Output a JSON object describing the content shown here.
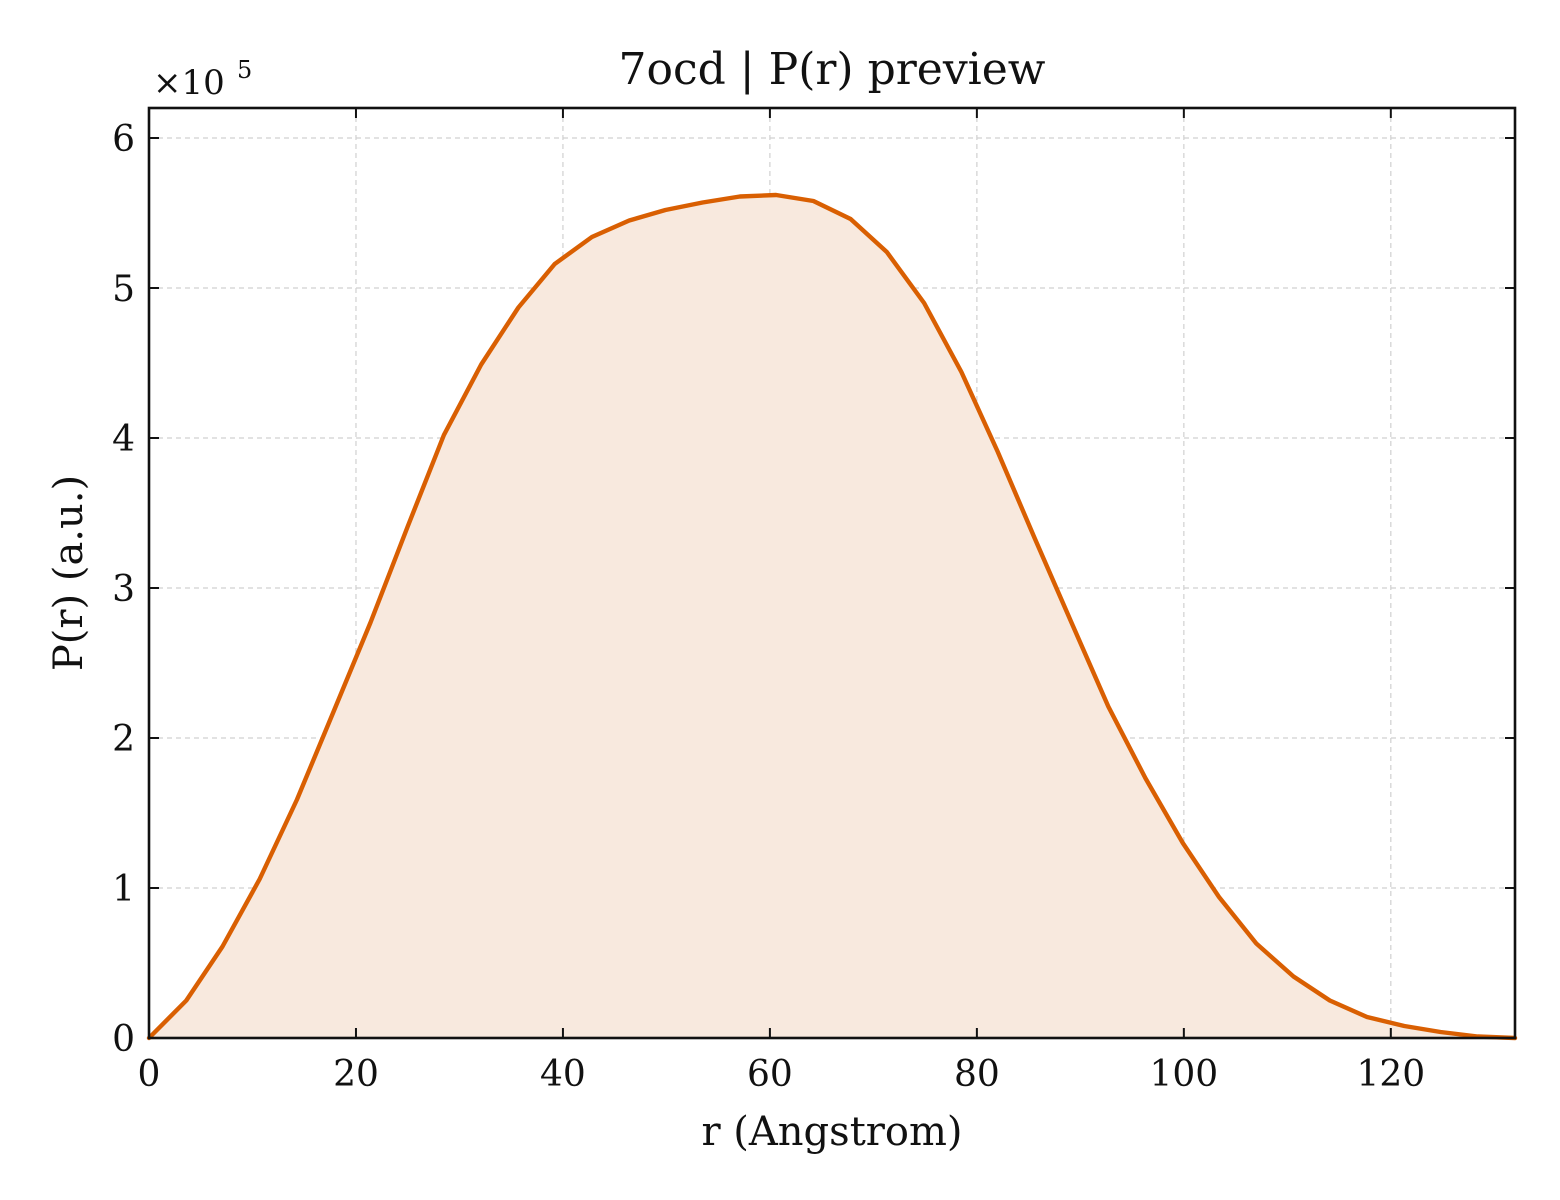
{
  "chart_data": {
    "type": "area",
    "title": "7ocd | P(r) preview",
    "xlabel": "r (Angstrom)",
    "ylabel": "P(r) (a.u.)",
    "y_multiplier_label": "×10",
    "y_multiplier_exponent": "5",
    "xlim": [
      0,
      132
    ],
    "ylim": [
      0,
      6.2
    ],
    "y_scale_factor": 100000,
    "x_ticks": [
      0,
      20,
      40,
      60,
      80,
      100,
      120
    ],
    "x_tick_labels": [
      "0",
      "20",
      "40",
      "60",
      "80",
      "100",
      "120"
    ],
    "y_ticks": [
      0,
      1,
      2,
      3,
      4,
      5,
      6
    ],
    "y_tick_labels": [
      "0",
      "1",
      "2",
      "3",
      "4",
      "5",
      "6"
    ],
    "grid": true,
    "colors": {
      "line": "#d95f02",
      "fill": "#f8e9de",
      "grid": "#d0d0d0",
      "axes": "#111111"
    },
    "series": [
      {
        "x": [
          0,
          3.6,
          7.1,
          10.7,
          14.3,
          17.8,
          21.4,
          25.0,
          28.5,
          32.1,
          35.7,
          39.2,
          42.8,
          46.4,
          49.9,
          53.5,
          57.1,
          60.6,
          64.2,
          67.8,
          71.3,
          74.9,
          78.5,
          82.0,
          85.6,
          89.2,
          92.7,
          96.3,
          99.9,
          103.4,
          107.0,
          110.6,
          114.1,
          117.7,
          121.3,
          124.8,
          128.4,
          132.0
        ],
        "y": [
          0,
          0.25,
          0.61,
          1.06,
          1.59,
          2.17,
          2.77,
          3.41,
          4.02,
          4.49,
          4.87,
          5.16,
          5.34,
          5.45,
          5.52,
          5.57,
          5.61,
          5.62,
          5.58,
          5.46,
          5.24,
          4.9,
          4.44,
          3.91,
          3.33,
          2.76,
          2.21,
          1.73,
          1.3,
          0.94,
          0.63,
          0.41,
          0.25,
          0.14,
          0.08,
          0.04,
          0.01,
          0.0
        ]
      }
    ]
  }
}
